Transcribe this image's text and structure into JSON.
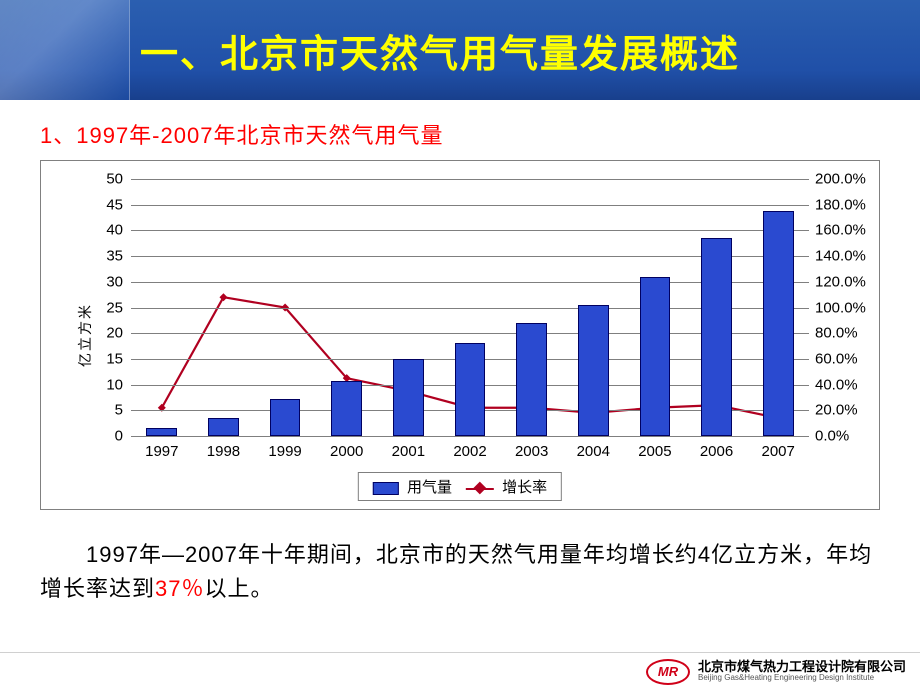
{
  "header": {
    "title": "一、北京市天然气用气量发展概述"
  },
  "subtitle": "1、1997年-2007年北京市天然气用气量",
  "chart": {
    "type": "bar+line",
    "years": [
      "1997",
      "1998",
      "1999",
      "2000",
      "2001",
      "2002",
      "2003",
      "2004",
      "2005",
      "2006",
      "2007"
    ],
    "bars": {
      "values": [
        1.5,
        3.5,
        7.2,
        10.8,
        15.0,
        18.0,
        22.0,
        25.5,
        31.0,
        38.5,
        43.8
      ],
      "color": "#2a4ad0",
      "border_color": "#000060",
      "bar_width_ratio": 0.5,
      "y_min": 0,
      "y_max": 50,
      "y_step": 5,
      "axis_title": "亿立方米",
      "legend_label": "用气量"
    },
    "line": {
      "values_pct": [
        22,
        108,
        100,
        45,
        35,
        22,
        22,
        18,
        22,
        24,
        14
      ],
      "color": "#b00020",
      "line_width": 2.2,
      "marker": "diamond",
      "marker_size": 8,
      "y_min": 0,
      "y_max": 200,
      "y_step": 20,
      "y_format_suffix": ".0%",
      "legend_label": "增长率"
    },
    "grid_color": "#7f7f7f",
    "background": "#ffffff",
    "border_color": "#808080",
    "tick_fontsize": 15,
    "y_axis_title_fontsize": 14,
    "legend_fontsize": 15
  },
  "body_text": {
    "pre": "1997年—2007年十年期间，北京市的天然气用量年均增长约4亿立方米，年均增长率达到",
    "accent": "37％",
    "post": "以上。"
  },
  "footer": {
    "logo_text": "MR",
    "name_cn": "北京市煤气热力工程设计院有限公司",
    "name_en": "Beijing Gas&Heating Engineering Design Institute"
  }
}
